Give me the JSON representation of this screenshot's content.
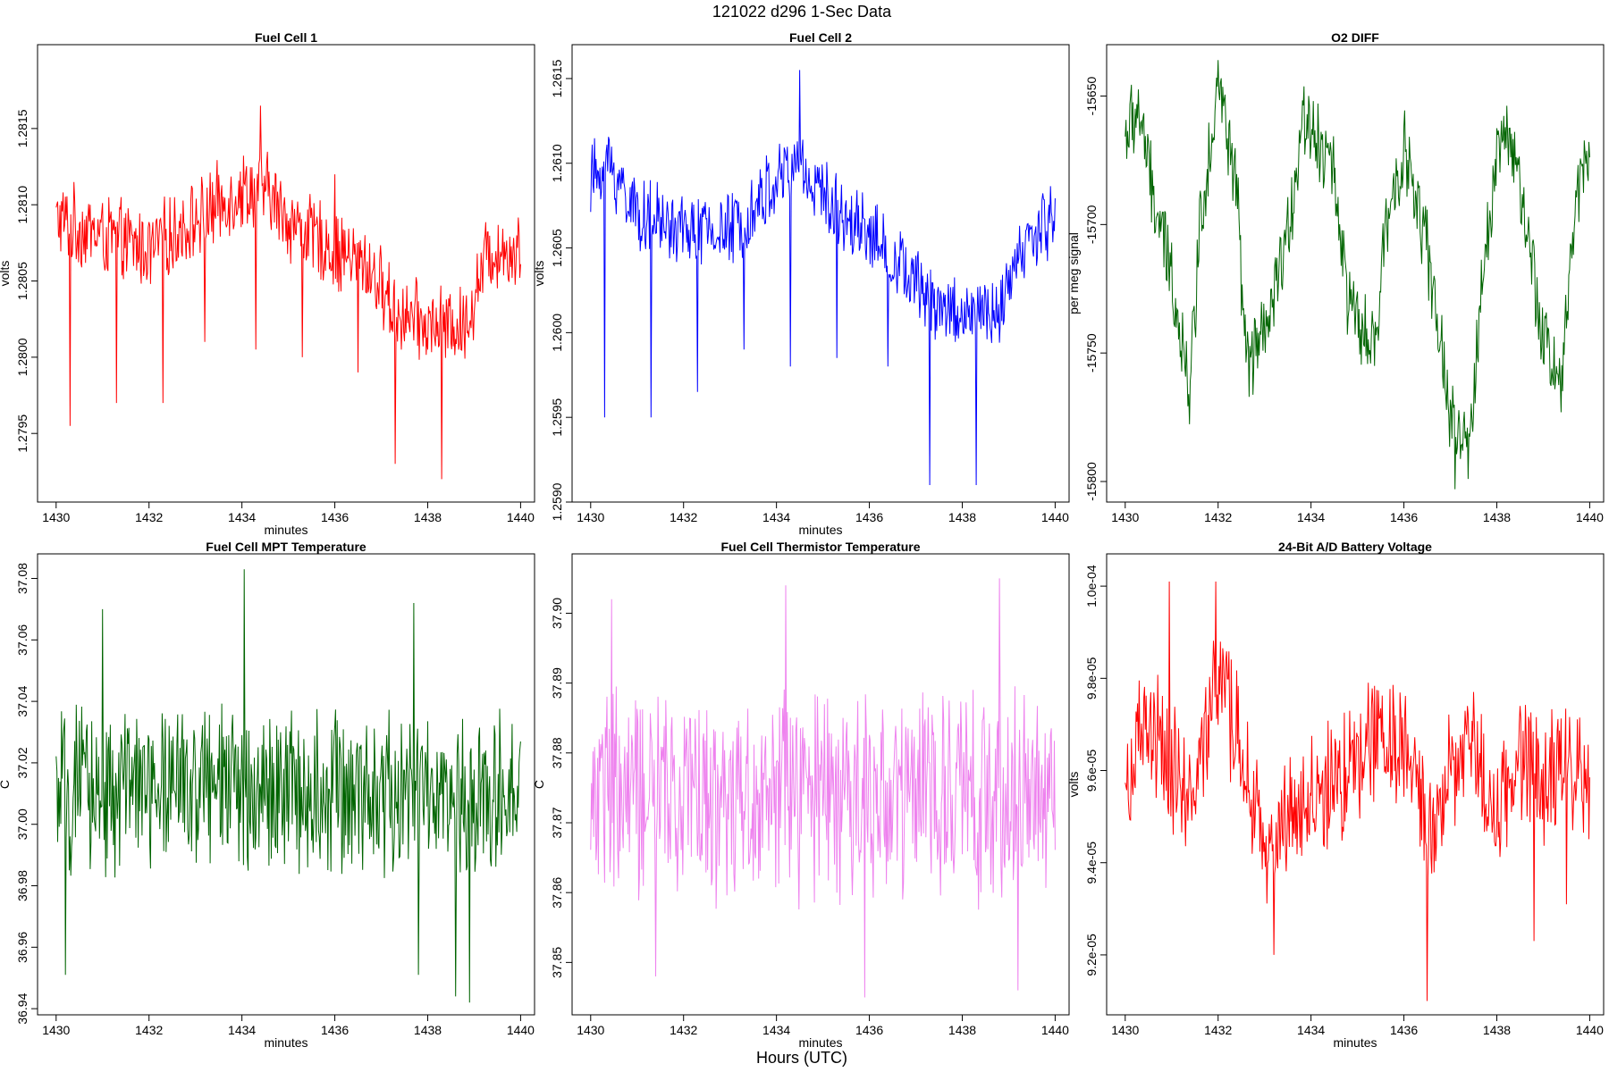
{
  "figure": {
    "title": "121022   d296   1-Sec Data",
    "xlabel": "Hours (UTC)"
  },
  "chart_data": [
    {
      "type": "line",
      "title": "Fuel Cell 1",
      "xlabel": "minutes",
      "ylabel": "volts",
      "color": "#ff0000",
      "xlim": [
        1429.6,
        1440.3
      ],
      "ylim": [
        1.27905,
        1.28205
      ],
      "x_ticks": [
        1430,
        1432,
        1434,
        1436,
        1438,
        1440
      ],
      "y_ticks": [
        1.2795,
        1.28,
        1.2805,
        1.281,
        1.2815
      ],
      "y_tick_labels": [
        "1.2795",
        "1.2800",
        "1.2805",
        "1.2810",
        "1.2815"
      ],
      "series_trend": {
        "x": [
          1430,
          1431,
          1432,
          1433,
          1434,
          1434.5,
          1435,
          1436,
          1436.7,
          1437.3,
          1438,
          1438.8,
          1439.3,
          1440
        ],
        "y": [
          1.2809,
          1.2808,
          1.2807,
          1.2809,
          1.2811,
          1.2811,
          1.2809,
          1.2807,
          1.2806,
          1.2803,
          1.2802,
          1.2802,
          1.2807,
          1.2807
        ]
      },
      "noise_amplitude": 0.0003,
      "spikes": [
        {
          "x": 1430.3,
          "y": 1.27955
        },
        {
          "x": 1431.3,
          "y": 1.2797
        },
        {
          "x": 1432.3,
          "y": 1.2797
        },
        {
          "x": 1433.2,
          "y": 1.2801
        },
        {
          "x": 1434.3,
          "y": 1.28005
        },
        {
          "x": 1434.4,
          "y": 1.28165
        },
        {
          "x": 1435.3,
          "y": 1.28
        },
        {
          "x": 1436.0,
          "y": 1.2812
        },
        {
          "x": 1436.5,
          "y": 1.2799
        },
        {
          "x": 1437.3,
          "y": 1.2793
        },
        {
          "x": 1438.3,
          "y": 1.2792
        }
      ]
    },
    {
      "type": "line",
      "title": "Fuel Cell 2",
      "xlabel": "minutes",
      "ylabel": "volts",
      "color": "#0000ff",
      "xlim": [
        1429.6,
        1440.3
      ],
      "ylim": [
        1.259,
        1.2617
      ],
      "x_ticks": [
        1430,
        1432,
        1434,
        1436,
        1438,
        1440
      ],
      "y_ticks": [
        1.259,
        1.2595,
        1.26,
        1.2605,
        1.261,
        1.2615
      ],
      "y_tick_labels": [
        "1.2590",
        "1.2595",
        "1.2600",
        "1.2605",
        "1.2610",
        "1.2615"
      ],
      "series_trend": {
        "x": [
          1430,
          1430.4,
          1431,
          1432,
          1433,
          1434,
          1434.5,
          1435,
          1436,
          1436.6,
          1437.3,
          1438,
          1438.8,
          1439.3,
          1440
        ],
        "y": [
          1.2609,
          1.261,
          1.2607,
          1.2606,
          1.2606,
          1.2609,
          1.261,
          1.2608,
          1.2606,
          1.2604,
          1.2602,
          1.2601,
          1.2601,
          1.2605,
          1.2607
        ]
      },
      "noise_amplitude": 0.00025,
      "spikes": [
        {
          "x": 1430.3,
          "y": 1.2595
        },
        {
          "x": 1431.3,
          "y": 1.2595
        },
        {
          "x": 1432.3,
          "y": 1.25965
        },
        {
          "x": 1433.3,
          "y": 1.2599
        },
        {
          "x": 1434.3,
          "y": 1.2598
        },
        {
          "x": 1434.5,
          "y": 1.26155
        },
        {
          "x": 1435.3,
          "y": 1.25985
        },
        {
          "x": 1436.4,
          "y": 1.2598
        },
        {
          "x": 1437.3,
          "y": 1.2591
        },
        {
          "x": 1438.3,
          "y": 1.2591
        }
      ]
    },
    {
      "type": "line",
      "title": "O2 DIFF",
      "xlabel": "",
      "ylabel": "per meg signal",
      "color": "#006400",
      "xlim": [
        1429.6,
        1440.3
      ],
      "ylim": [
        -15808,
        -15630
      ],
      "x_ticks": [
        1430,
        1432,
        1434,
        1436,
        1438,
        1440
      ],
      "y_ticks": [
        -15800,
        -15750,
        -15700,
        -15650
      ],
      "y_tick_labels": [
        "-15800",
        "-15750",
        "-15700",
        "-15650"
      ],
      "series_trend": {
        "x": [
          1430,
          1430.3,
          1430.6,
          1431,
          1431.4,
          1431.6,
          1432,
          1432.4,
          1432.6,
          1433,
          1433.5,
          1433.8,
          1434,
          1434.5,
          1434.8,
          1435,
          1435.4,
          1435.6,
          1436,
          1436.5,
          1437,
          1437.4,
          1437.7,
          1438,
          1438.3,
          1438.6,
          1439,
          1439.4,
          1439.7,
          1440
        ],
        "y": [
          -15665,
          -15655,
          -15690,
          -15720,
          -15765,
          -15700,
          -15645,
          -15685,
          -15755,
          -15745,
          -15705,
          -15660,
          -15660,
          -15680,
          -15730,
          -15740,
          -15750,
          -15700,
          -15670,
          -15710,
          -15775,
          -15790,
          -15720,
          -15670,
          -15665,
          -15700,
          -15745,
          -15760,
          -15690,
          -15665
        ]
      },
      "noise_amplitude": 18,
      "spikes": [
        {
          "x": 1432.0,
          "y": -15636
        },
        {
          "x": 1437.1,
          "y": -15803
        }
      ]
    },
    {
      "type": "line",
      "title": "Fuel Cell MPT Temperature",
      "xlabel": "minutes",
      "ylabel": "C",
      "color": "#006400",
      "xlim": [
        1429.6,
        1440.3
      ],
      "ylim": [
        36.938,
        37.088
      ],
      "x_ticks": [
        1430,
        1432,
        1434,
        1436,
        1438,
        1440
      ],
      "y_ticks": [
        36.94,
        36.96,
        36.98,
        37.0,
        37.02,
        37.04,
        37.06,
        37.08
      ],
      "y_tick_labels": [
        "36.94",
        "36.96",
        "36.98",
        "37.00",
        "37.02",
        "37.04",
        "37.06",
        "37.08"
      ],
      "series_trend": {
        "x": [
          1430,
          1432,
          1434,
          1436,
          1438,
          1439,
          1440
        ],
        "y": [
          37.01,
          37.012,
          37.012,
          37.012,
          37.008,
          37.005,
          37.015
        ]
      },
      "noise_amplitude": 0.03,
      "spikes": [
        {
          "x": 1430.2,
          "y": 36.951
        },
        {
          "x": 1431.0,
          "y": 37.07
        },
        {
          "x": 1434.05,
          "y": 37.083
        },
        {
          "x": 1437.7,
          "y": 37.072
        },
        {
          "x": 1437.8,
          "y": 36.951
        },
        {
          "x": 1438.6,
          "y": 36.944
        },
        {
          "x": 1438.9,
          "y": 36.942
        }
      ]
    },
    {
      "type": "line",
      "title": "Fuel Cell Thermistor Temperature",
      "xlabel": "minutes",
      "ylabel": "C",
      "color": "#ee82ee",
      "xlim": [
        1429.6,
        1440.3
      ],
      "ylim": [
        37.8425,
        37.9085
      ],
      "x_ticks": [
        1430,
        1432,
        1434,
        1436,
        1438,
        1440
      ],
      "y_ticks": [
        37.85,
        37.86,
        37.87,
        37.88,
        37.89,
        37.9
      ],
      "y_tick_labels": [
        "37.85",
        "37.86",
        "37.87",
        "37.88",
        "37.89",
        "37.90"
      ],
      "series_trend": {
        "x": [
          1430,
          1435,
          1440
        ],
        "y": [
          37.874,
          37.874,
          37.874
        ]
      },
      "noise_amplitude": 0.017,
      "spikes": [
        {
          "x": 1430.45,
          "y": 37.902
        },
        {
          "x": 1431.4,
          "y": 37.848
        },
        {
          "x": 1434.2,
          "y": 37.904
        },
        {
          "x": 1435.9,
          "y": 37.845
        },
        {
          "x": 1438.8,
          "y": 37.905
        },
        {
          "x": 1439.2,
          "y": 37.846
        }
      ]
    },
    {
      "type": "line",
      "title": "24-Bit A/D Battery Voltage",
      "xlabel": "minutes",
      "ylabel": "volts",
      "color": "#ff0000",
      "xlim": [
        1429.6,
        1440.3
      ],
      "ylim": [
        9.07e-05,
        0.0001007
      ],
      "x_ticks": [
        1430,
        1432,
        1434,
        1436,
        1438,
        1440
      ],
      "y_ticks": [
        9.2e-05,
        9.4e-05,
        9.6e-05,
        9.8e-05,
        0.0001
      ],
      "y_tick_labels": [
        "9.2e-05",
        "9.4e-05",
        "9.6e-05",
        "9.8e-05",
        "1.0e-04"
      ],
      "series_trend": {
        "x": [
          1430,
          1430.5,
          1431,
          1431.5,
          1432,
          1432.5,
          1433,
          1433.5,
          1434,
          1434.5,
          1435,
          1435.5,
          1436,
          1436.5,
          1437,
          1437.5,
          1438,
          1438.5,
          1439,
          1439.5,
          1440
        ],
        "y": [
          9.55e-05,
          9.7e-05,
          9.6e-05,
          9.55e-05,
          9.8e-05,
          9.65e-05,
          9.4e-05,
          9.5e-05,
          9.55e-05,
          9.55e-05,
          9.65e-05,
          9.7e-05,
          9.65e-05,
          9.45e-05,
          9.6e-05,
          9.65e-05,
          9.5e-05,
          9.65e-05,
          9.55e-05,
          9.65e-05,
          9.55e-05
        ]
      },
      "noise_amplitude": 1.6e-06,
      "spikes": [
        {
          "x": 1430.95,
          "y": 0.0001001
        },
        {
          "x": 1431.95,
          "y": 0.0001001
        },
        {
          "x": 1433.2,
          "y": 9.2e-05
        },
        {
          "x": 1436.5,
          "y": 9.1e-05
        },
        {
          "x": 1438.8,
          "y": 9.23e-05
        },
        {
          "x": 1439.5,
          "y": 9.31e-05
        }
      ]
    }
  ]
}
